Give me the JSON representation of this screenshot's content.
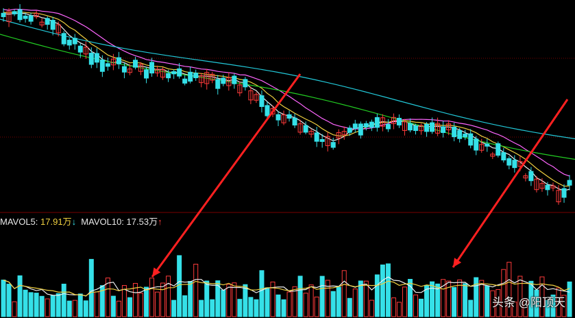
{
  "volume_panel": {
    "mavol5_label": "MAVOL5:",
    "mavol5_value": "17.91万",
    "mavol5_trend": "↓",
    "mavol10_label": "MAVOL10:",
    "mavol10_value": "17.53万",
    "mavol10_trend": "↑"
  },
  "watermark": {
    "text": "头条 @阳顶天"
  },
  "colors": {
    "background": "#000000",
    "up_candle": "#ff3b3b",
    "down_candle": "#35e0e8",
    "ma_white": "#f0f0f0",
    "ma_yellow": "#f0d040",
    "ma_magenta": "#ff66ff",
    "ma_green": "#22cc22",
    "ma_cyan": "#22c8d8",
    "arrow": "#ff2020",
    "gridline": "#7a0000"
  },
  "icons": [
    "down-trend-arrow-icon",
    "up-trend-arrow-icon",
    "red-annotation-arrow-icon"
  ]
}
